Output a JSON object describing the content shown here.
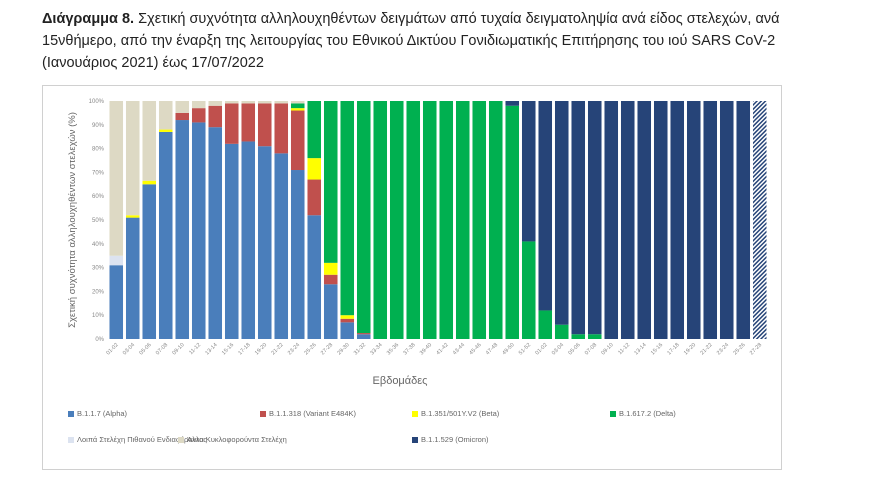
{
  "document": {
    "title_bold": "Διάγραμμα 8.",
    "title_text": "Σχετική συχνότητα αλληλουχηθέντων δειγμάτων από τυχαία δειγματοληψία ανά είδος στελεχών, ανά 15νθήμερο, από την έναρξη της λειτουργίας του Εθνικού Δικτύου Γονιδιωματικής Επιτήρησης του ιού SARS CoV-2 (Ιανουάριος 2021) έως 17/07/2022"
  },
  "chart_data": {
    "type": "bar",
    "stacked": true,
    "normalized": true,
    "xlabel": "Εβδομάδες",
    "ylabel": "Σχετική συχνότητα αλληλουχηθέντων στελεχών (%)",
    "ylim": [
      0,
      100
    ],
    "yticks": [
      "0%",
      "10%",
      "20%",
      "30%",
      "40%",
      "50%",
      "60%",
      "70%",
      "80%",
      "90%",
      "100%"
    ],
    "grid": false,
    "legend_placement": "bottom",
    "categories": [
      "01-02",
      "03-04",
      "05-06",
      "07-08",
      "09-10",
      "11-12",
      "13-14",
      "15-16",
      "17-18",
      "19-20",
      "21-22",
      "23-24",
      "25-26",
      "27-28",
      "29-30",
      "31-32",
      "33-34",
      "35-36",
      "37-38",
      "39-40",
      "41-42",
      "43-44",
      "45-46",
      "47-48",
      "49-50",
      "51-52",
      "01-02",
      "03-04",
      "05-06",
      "07-08",
      "09-10",
      "11-12",
      "13-14",
      "15-16",
      "17-18",
      "19-20",
      "21-22",
      "23-24",
      "25-26",
      "27-28"
    ],
    "hatched_categories_index": [
      39
    ],
    "series": [
      {
        "name": "B.1.1.7 (Alpha)",
        "color": "#4a7ebb",
        "values": [
          31,
          51,
          65,
          87,
          92,
          91,
          89,
          82,
          83,
          81,
          78,
          71,
          52,
          23,
          7,
          2,
          0,
          0,
          0,
          0,
          0,
          0,
          0,
          0,
          0,
          0,
          0,
          0,
          0,
          0,
          0,
          0,
          0,
          0,
          0,
          0,
          0,
          0,
          0,
          0
        ]
      },
      {
        "name": "B.1.1.318 (Variant E484K)",
        "color": "#c0504d",
        "values": [
          0,
          0,
          0,
          0,
          3,
          6,
          9,
          17,
          16,
          18,
          21,
          25,
          15,
          4,
          1.5,
          0.5,
          0,
          0,
          0,
          0,
          0,
          0,
          0,
          0,
          0,
          0,
          0,
          0,
          0,
          0,
          0,
          0,
          0,
          0,
          0,
          0,
          0,
          0,
          0,
          0
        ]
      },
      {
        "name": "B.1.351/501Y.V2 (Beta)",
        "color": "#ffff00",
        "values": [
          0,
          1,
          1.5,
          1,
          0,
          0,
          0,
          0,
          0,
          0,
          0,
          1,
          9,
          5,
          1.5,
          0,
          0,
          0,
          0,
          0,
          0,
          0,
          0,
          0,
          0,
          0,
          0,
          0,
          0,
          0,
          0,
          0,
          0,
          0,
          0,
          0,
          0,
          0,
          0,
          0
        ]
      },
      {
        "name": "B.1.617.2 (Delta)",
        "color": "#00b050",
        "values": [
          0,
          0,
          0,
          0,
          0,
          0,
          0,
          0,
          0,
          0,
          0,
          2,
          24,
          68,
          90,
          97.5,
          100,
          100,
          100,
          100,
          100,
          100,
          100,
          100,
          98,
          41,
          12,
          6,
          2,
          2,
          0,
          0,
          0,
          0,
          0,
          0,
          0,
          0,
          0,
          0
        ]
      },
      {
        "name": "Λοιπά Στελέχη Πιθανού Ενδιαφέροντος",
        "color": "#dce3f0",
        "values": [
          4,
          0,
          0,
          0,
          0,
          0,
          0,
          0,
          0,
          0,
          0,
          0,
          0,
          0,
          0,
          0,
          0,
          0,
          0,
          0,
          0,
          0,
          0,
          0,
          0,
          0,
          0,
          0,
          0,
          0,
          0,
          0,
          0,
          0,
          0,
          0,
          0,
          0,
          0,
          0
        ]
      },
      {
        "name": "Άλλα Κυκλοφορούντα Στελέχη",
        "color": "#ddd9c4",
        "values": [
          65,
          48,
          33.5,
          12,
          5,
          3,
          2,
          1,
          1,
          1,
          1,
          1,
          0,
          0,
          0,
          0,
          0,
          0,
          0,
          0,
          0,
          0,
          0,
          0,
          0,
          0,
          0,
          0,
          0,
          0,
          0,
          0,
          0,
          0,
          0,
          0,
          0,
          0,
          0,
          0
        ]
      },
      {
        "name": "B.1.1.529 (Omicron)",
        "color": "#264478",
        "values": [
          0,
          0,
          0,
          0,
          0,
          0,
          0,
          0,
          0,
          0,
          0,
          0,
          0,
          0,
          0,
          0,
          0,
          0,
          0,
          0,
          0,
          0,
          0,
          0,
          2,
          59,
          88,
          94,
          98,
          98,
          100,
          100,
          100,
          100,
          100,
          100,
          100,
          100,
          100,
          100
        ]
      }
    ],
    "legend_order": [
      0,
      1,
      2,
      3,
      4,
      5,
      6
    ]
  }
}
